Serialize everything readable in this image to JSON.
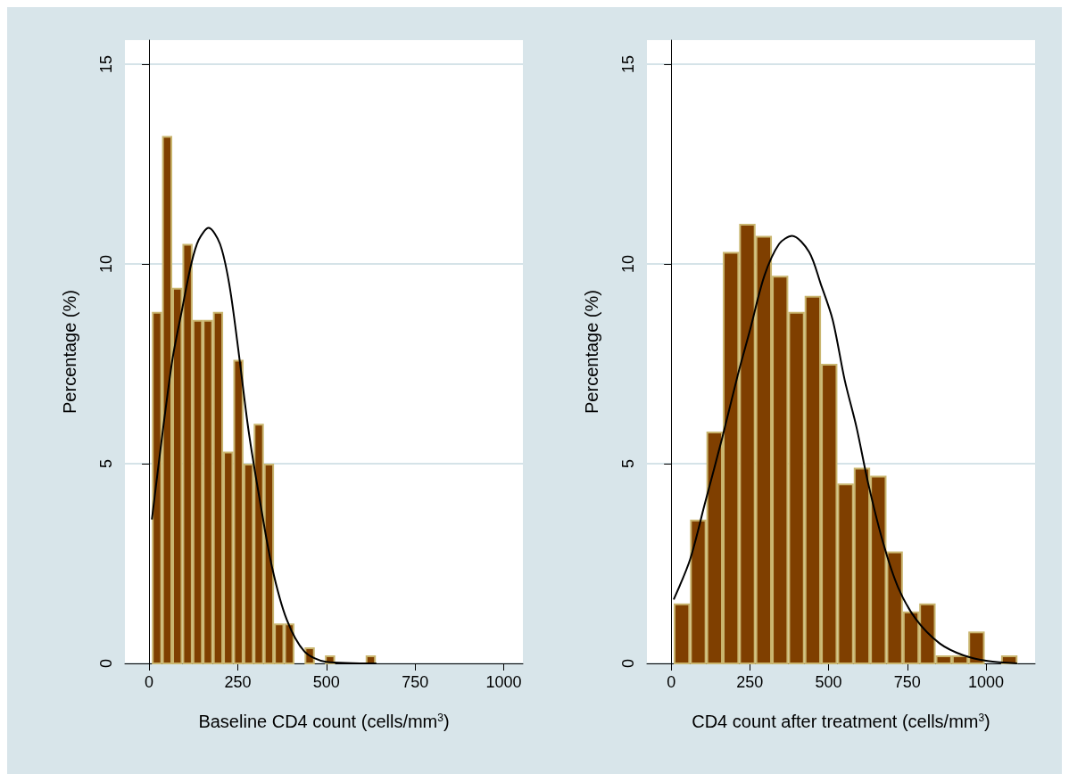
{
  "chart_data": [
    {
      "type": "histogram",
      "xlabel": "Baseline CD4 count (cells/mm$^{3}$)",
      "ylabel": "Percentage (%)",
      "xlim": [
        -68,
        1054
      ],
      "xticks": [
        0,
        250,
        500,
        750,
        1000
      ],
      "ylim": [
        0,
        15.6
      ],
      "yticks": [
        0,
        5,
        10,
        15
      ],
      "grid": "y",
      "series": [
        {
          "type": "histogram",
          "color": "#7f3f00",
          "bins": [
            8,
            36.7,
            65.4,
            94.1,
            122.8,
            151.5,
            180.2,
            208.9,
            237.6,
            266.3,
            295,
            323.7,
            352.4,
            381.1,
            409.8,
            438.5,
            467.2,
            495.9,
            524.6,
            553.3,
            582,
            610.7,
            639.4
          ],
          "values": [
            8.8,
            13.2,
            9.4,
            10.5,
            8.6,
            8.6,
            8.8,
            5.3,
            7.6,
            5,
            6,
            5,
            1,
            1,
            0,
            0.4,
            0,
            0.2,
            0,
            0,
            0,
            0.2
          ]
        },
        {
          "type": "line",
          "color": "#000000",
          "x": [
            8,
            64,
            94,
            119,
            140,
            168,
            200,
            226,
            251,
            281,
            312,
            347,
            388,
            438,
            499,
            641
          ],
          "values": [
            3.6,
            7.5,
            8.9,
            10,
            10.6,
            10.9,
            10.5,
            9.5,
            7.9,
            5.8,
            4.1,
            2.4,
            1.1,
            0.3,
            0.04,
            0
          ]
        }
      ]
    },
    {
      "type": "histogram",
      "xlabel": "CD4 count after treatment (cells/mm$^{3}$)",
      "ylabel": "Percentage (%)",
      "xlim": [
        -77,
        1156
      ],
      "xticks": [
        0,
        250,
        500,
        750,
        1000
      ],
      "ylim": [
        0,
        15.6
      ],
      "yticks": [
        0,
        5,
        10,
        15
      ],
      "grid": "y",
      "series": [
        {
          "type": "histogram",
          "color": "#7f3f00",
          "bins": [
            8,
            60,
            112,
            164,
            216,
            268,
            320,
            372,
            424,
            476,
            528,
            580,
            632,
            684,
            736,
            788,
            840,
            892,
            944,
            996,
            1048,
            1100
          ],
          "values": [
            1.5,
            3.6,
            5.8,
            10.3,
            11,
            10.7,
            9.7,
            8.8,
            9.2,
            7.5,
            4.5,
            4.9,
            4.7,
            2.8,
            1.3,
            1.5,
            0.2,
            0.2,
            0.8,
            0,
            0.2
          ]
        },
        {
          "type": "line",
          "color": "#000000",
          "x": [
            8,
            60,
            107,
            164,
            211,
            249,
            296,
            343,
            384,
            438,
            475,
            513,
            551,
            589,
            626,
            674,
            721,
            778,
            853,
            929,
            1005,
            1099
          ],
          "values": [
            1.6,
            2.6,
            4,
            5.7,
            7.2,
            8.3,
            9.7,
            10.5,
            10.7,
            10.3,
            9.5,
            8.6,
            7.1,
            5.9,
            4.5,
            3,
            1.9,
            1.1,
            0.5,
            0.2,
            0.06,
            0
          ]
        }
      ]
    }
  ]
}
